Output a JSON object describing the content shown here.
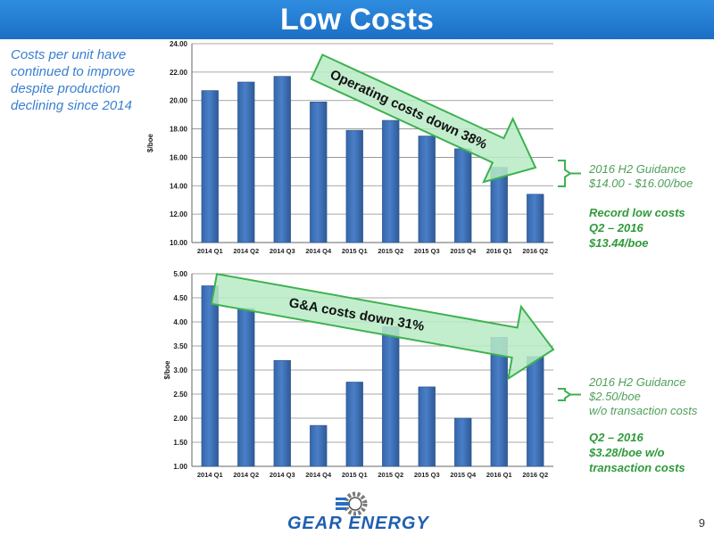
{
  "header": {
    "title": "Low Costs"
  },
  "side_note": "Costs per unit have continued to improve despite production declining since 2014",
  "colors": {
    "title_bar": "#1f78d1",
    "bar": "#4a7fc8",
    "arrow_fill": "#b9ebc6",
    "arrow_stroke": "#3db24f",
    "guidance_text": "#4fa05a",
    "record_text": "#2f9a3a"
  },
  "chart_data": [
    {
      "type": "bar",
      "title": "",
      "xlabel": "",
      "ylabel": "$/boe",
      "ylim": [
        10,
        24
      ],
      "yticks": [
        "10.00",
        "12.00",
        "14.00",
        "16.00",
        "18.00",
        "20.00",
        "22.00",
        "24.00"
      ],
      "grid": true,
      "categories": [
        "2014 Q1",
        "2014 Q2",
        "2014 Q3",
        "2014 Q4",
        "2015 Q1",
        "2015 Q2",
        "2015 Q3",
        "2015 Q4",
        "2016 Q1",
        "2016 Q2"
      ],
      "values": [
        20.7,
        21.3,
        21.7,
        19.9,
        17.9,
        18.6,
        17.5,
        16.6,
        15.3,
        13.4
      ],
      "annotation": "Operating costs down 38%"
    },
    {
      "type": "bar",
      "title": "",
      "xlabel": "",
      "ylabel": "$/boe",
      "ylim": [
        1,
        5
      ],
      "yticks": [
        "1.00",
        "1.50",
        "2.00",
        "2.50",
        "3.00",
        "3.50",
        "4.00",
        "4.50",
        "5.00"
      ],
      "grid": true,
      "categories": [
        "2014 Q1",
        "2014 Q2",
        "2014 Q3",
        "2014 Q4",
        "2015 Q1",
        "2015 Q2",
        "2015 Q3",
        "2015 Q4",
        "2016 Q1",
        "2016 Q2"
      ],
      "values": [
        4.75,
        4.28,
        3.2,
        1.85,
        2.75,
        3.9,
        2.65,
        2.0,
        3.68,
        3.28
      ],
      "annotation": "G&A costs down 31%"
    }
  ],
  "opex_side": {
    "guidance_title": "2016 H2 Guidance",
    "guidance_value": "$14.00 - $16.00/boe",
    "record_line1": "Record low costs",
    "record_line2": "Q2 – 2016",
    "record_line3": "$13.44/boe"
  },
  "ga_side": {
    "guidance_title": "2016 H2 Guidance",
    "guidance_value": "$2.50/boe",
    "guidance_note": "w/o transaction costs",
    "q_line1": "Q2 – 2016",
    "q_line2": "$3.28/boe w/o",
    "q_line3": "transaction costs"
  },
  "logo": {
    "text": "GEAR ENERGY",
    "icon": "gear-icon"
  },
  "page_number": "9"
}
